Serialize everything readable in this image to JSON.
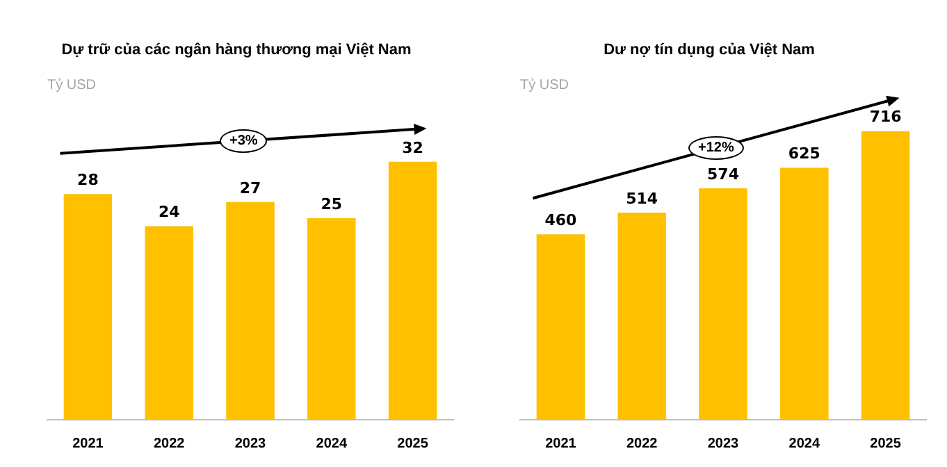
{
  "chart_data": [
    {
      "type": "bar",
      "title": "Dự trữ của các ngân hàng thương mại Việt Nam",
      "ylabel": "Tỷ USD",
      "categories": [
        "2021",
        "2022",
        "2023",
        "2024",
        "2025"
      ],
      "values": [
        28,
        24,
        27,
        25,
        32
      ],
      "color": "#ffc000",
      "data_labels": true,
      "annotations": [
        "+3%"
      ]
    },
    {
      "type": "bar",
      "title": "Dư nợ tín dụng của Việt Nam",
      "ylabel": "Tỷ USD",
      "categories": [
        "2021",
        "2022",
        "2023",
        "2024",
        "2025"
      ],
      "values": [
        460,
        514,
        574,
        625,
        716
      ],
      "color": "#ffc000",
      "data_labels": true,
      "annotations": [
        "+12%"
      ]
    }
  ]
}
